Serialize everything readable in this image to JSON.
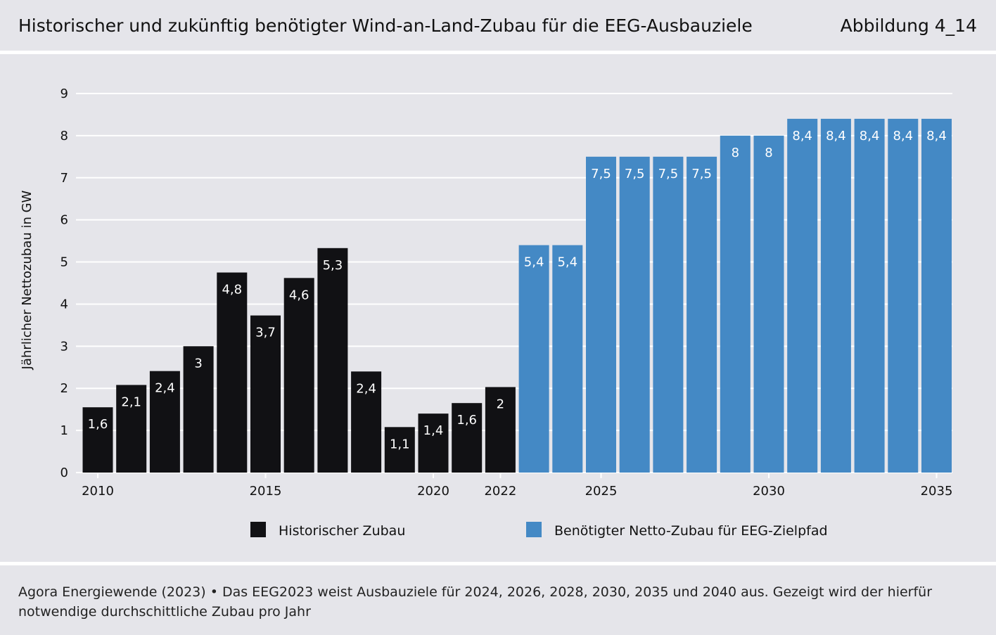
{
  "header": {
    "title": "Historischer und zukünftig benötigter Wind-an-Land-Zubau für die EEG-Ausbauziele",
    "figure_label": "Abbildung 4_14"
  },
  "footer": {
    "source": "Agora Energiewende (2023) • Das EEG2023 weist Ausbauziele für 2024, 2026, 2028, 2030, 2035 und 2040 aus. Gezeigt wird der hierfür notwendige durchschittliche Zubau pro Jahr"
  },
  "colors": {
    "historical": "#111114",
    "needed": "#4489c5",
    "grid": "#ffffff",
    "background": "#e5e5ea"
  },
  "chart_data": {
    "type": "bar",
    "title": "Historischer und zukünftig benötigter Wind-an-Land-Zubau für die EEG-Ausbauziele",
    "ylabel": "Jährlicher Nettozubau in GW",
    "xlabel": "",
    "ylim": [
      0,
      9
    ],
    "yticks": [
      0,
      1,
      2,
      3,
      4,
      5,
      6,
      7,
      8,
      9
    ],
    "grid": true,
    "xticks": [
      {
        "year": 2010,
        "label": "2010"
      },
      {
        "year": 2015,
        "label": "2015"
      },
      {
        "year": 2020,
        "label": "2020"
      },
      {
        "year": 2022,
        "label": "2022"
      },
      {
        "year": 2025,
        "label": "2025"
      },
      {
        "year": 2030,
        "label": "2030"
      },
      {
        "year": 2035,
        "label": "2035"
      }
    ],
    "legend_position": "bottom",
    "series": [
      {
        "name": "Historischer Zubau",
        "color_key": "historical",
        "points": [
          {
            "year": 2010,
            "value": 1.55,
            "label": "1,6"
          },
          {
            "year": 2011,
            "value": 2.08,
            "label": "2,1"
          },
          {
            "year": 2012,
            "value": 2.41,
            "label": "2,4"
          },
          {
            "year": 2013,
            "value": 3.0,
            "label": "3"
          },
          {
            "year": 2014,
            "value": 4.75,
            "label": "4,8"
          },
          {
            "year": 2015,
            "value": 3.73,
            "label": "3,7"
          },
          {
            "year": 2016,
            "value": 4.62,
            "label": "4,6"
          },
          {
            "year": 2017,
            "value": 5.33,
            "label": "5,3"
          },
          {
            "year": 2018,
            "value": 2.4,
            "label": "2,4"
          },
          {
            "year": 2019,
            "value": 1.08,
            "label": "1,1"
          },
          {
            "year": 2020,
            "value": 1.4,
            "label": "1,4"
          },
          {
            "year": 2021,
            "value": 1.65,
            "label": "1,6"
          },
          {
            "year": 2022,
            "value": 2.03,
            "label": "2"
          }
        ]
      },
      {
        "name": "Benötigter Netto-Zubau für EEG-Zielpfad",
        "color_key": "needed",
        "points": [
          {
            "year": 2023,
            "value": 5.4,
            "label": "5,4"
          },
          {
            "year": 2024,
            "value": 5.4,
            "label": "5,4"
          },
          {
            "year": 2025,
            "value": 7.5,
            "label": "7,5"
          },
          {
            "year": 2026,
            "value": 7.5,
            "label": "7,5"
          },
          {
            "year": 2027,
            "value": 7.5,
            "label": "7,5"
          },
          {
            "year": 2028,
            "value": 7.5,
            "label": "7,5"
          },
          {
            "year": 2029,
            "value": 8.0,
            "label": "8"
          },
          {
            "year": 2030,
            "value": 8.0,
            "label": "8"
          },
          {
            "year": 2031,
            "value": 8.4,
            "label": "8,4"
          },
          {
            "year": 2032,
            "value": 8.4,
            "label": "8,4"
          },
          {
            "year": 2033,
            "value": 8.4,
            "label": "8,4"
          },
          {
            "year": 2034,
            "value": 8.4,
            "label": "8,4"
          },
          {
            "year": 2035,
            "value": 8.4,
            "label": "8,4"
          }
        ]
      }
    ]
  }
}
